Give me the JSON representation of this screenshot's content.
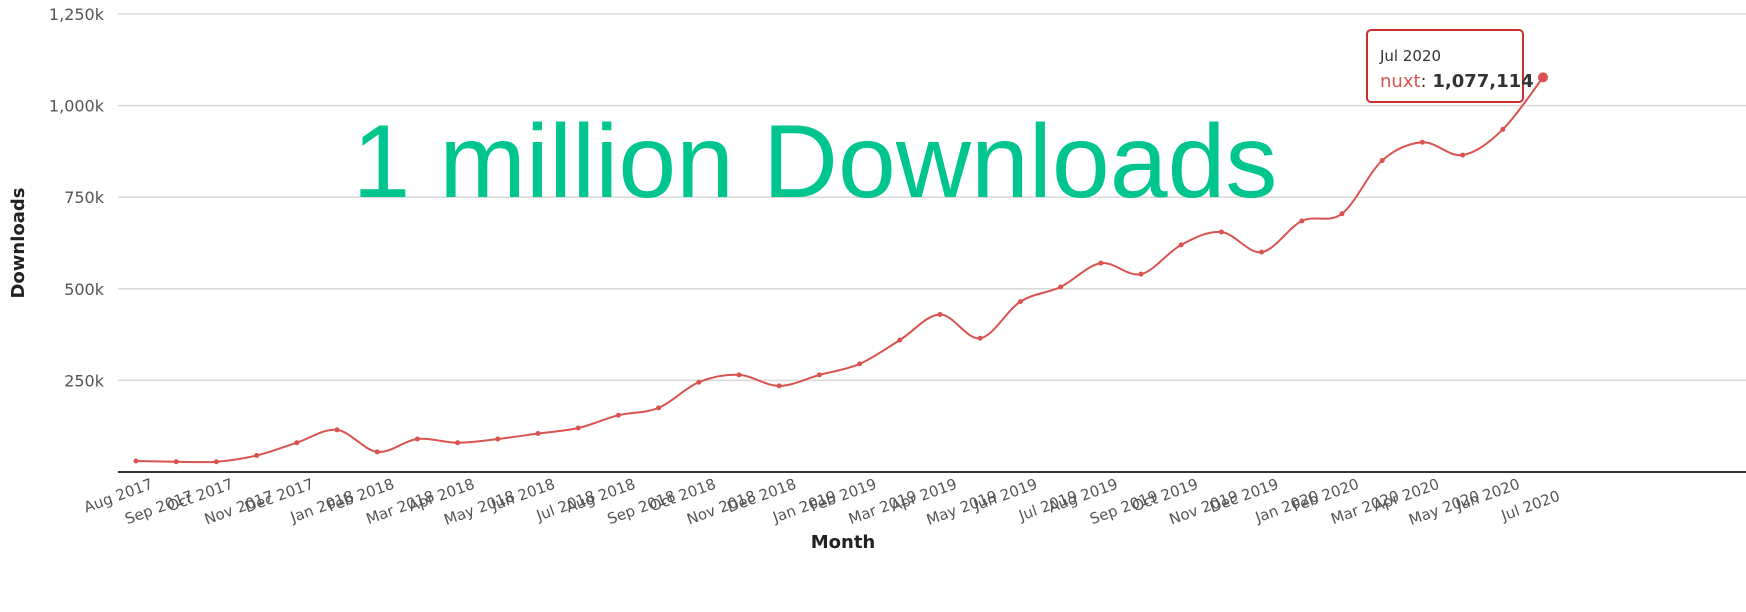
{
  "headline": "1 million Downloads",
  "colors": {
    "line": "#d9534f",
    "headline": "#00c58e",
    "grid": "#d8d8d8",
    "tooltip_border": "#c9302c"
  },
  "tooltip": {
    "title": "Jul 2020",
    "series": "nuxt",
    "value": "1,077,114"
  },
  "chart_data": {
    "type": "line",
    "xlabel": "Month",
    "ylabel": "Downloads",
    "ylim": [
      0,
      1250000
    ],
    "yticks": [
      250000,
      500000,
      750000,
      1000000,
      1250000
    ],
    "ytick_labels": [
      "250k",
      "500k",
      "750k",
      "1,000k",
      "1,250k"
    ],
    "grid": true,
    "categories": [
      "Aug 2017",
      "Sep 2017",
      "Oct 2017",
      "Nov 2017",
      "Dec 2017",
      "Jan 2018",
      "Feb 2018",
      "Mar 2018",
      "Apr 2018",
      "May 2018",
      "Jun 2018",
      "Jul 2018",
      "Aug 2018",
      "Sep 2018",
      "Oct 2018",
      "Nov 2018",
      "Dec 2018",
      "Jan 2019",
      "Feb 2019",
      "Mar 2019",
      "Apr 2019",
      "May 2019",
      "Jun 2019",
      "Jul 2019",
      "Aug 2019",
      "Sep 2019",
      "Oct 2019",
      "Nov 2019",
      "Dec 2019",
      "Jan 2020",
      "Feb 2020",
      "Mar 2020",
      "Apr 2020",
      "May 2020",
      "Jun 2020",
      "Jul 2020"
    ],
    "series": [
      {
        "name": "nuxt",
        "values": [
          30000,
          28000,
          28000,
          45000,
          80000,
          115000,
          55000,
          90000,
          80000,
          90000,
          105000,
          120000,
          155000,
          175000,
          245000,
          265000,
          235000,
          265000,
          295000,
          360000,
          430000,
          365000,
          465000,
          505000,
          570000,
          540000,
          620000,
          655000,
          600000,
          685000,
          705000,
          850000,
          900000,
          865000,
          935000,
          1077114
        ]
      }
    ]
  }
}
